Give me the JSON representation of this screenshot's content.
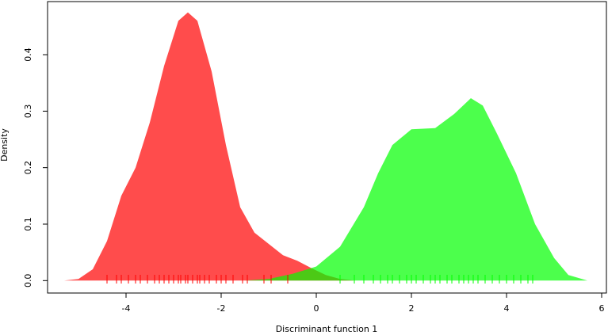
{
  "chart_data": {
    "type": "density",
    "xlabel": "Discriminant function 1",
    "ylabel": "Density",
    "xlim": [
      -5.65,
      6.1
    ],
    "ylim": [
      -0.022,
      0.494
    ],
    "xticks": [
      -4,
      -2,
      0,
      2,
      4,
      6
    ],
    "yticks": [
      {
        "value": 0,
        "label": "0.0"
      },
      0.1,
      0.2,
      0.3,
      0.4
    ],
    "series": [
      {
        "color": "#ff0000",
        "opacity": 0.7,
        "x": [
          -5.3,
          -5.0,
          -4.7,
          -4.4,
          -4.1,
          -3.8,
          -3.5,
          -3.2,
          -2.9,
          -2.7,
          -2.5,
          -2.2,
          -1.9,
          -1.6,
          -1.3,
          -1.0,
          -0.7,
          -0.4,
          -0.1,
          0.2,
          0.5,
          0.8
        ],
        "values": [
          0.0,
          0.003,
          0.02,
          0.07,
          0.15,
          0.2,
          0.28,
          0.38,
          0.46,
          0.475,
          0.46,
          0.37,
          0.24,
          0.13,
          0.085,
          0.065,
          0.045,
          0.035,
          0.022,
          0.01,
          0.003,
          0.0
        ],
        "rug": [
          -4.4,
          -4.2,
          -4.1,
          -3.95,
          -3.8,
          -3.7,
          -3.55,
          -3.4,
          -3.3,
          -3.2,
          -3.1,
          -3.0,
          -2.9,
          -2.85,
          -2.75,
          -2.7,
          -2.6,
          -2.5,
          -2.45,
          -2.35,
          -2.25,
          -2.1,
          -2.0,
          -1.9,
          -1.75,
          -1.55,
          -1.45,
          -1.1,
          -0.95,
          -0.6
        ]
      },
      {
        "color": "#00ff00",
        "opacity": 0.7,
        "x": [
          -1.5,
          -1.0,
          -0.5,
          0.0,
          0.5,
          1.0,
          1.3,
          1.6,
          2.0,
          2.5,
          2.9,
          3.25,
          3.5,
          3.8,
          4.2,
          4.6,
          5.0,
          5.3,
          5.7
        ],
        "values": [
          0.0,
          0.003,
          0.012,
          0.025,
          0.06,
          0.13,
          0.19,
          0.24,
          0.268,
          0.27,
          0.295,
          0.323,
          0.31,
          0.26,
          0.19,
          0.1,
          0.04,
          0.01,
          0.0
        ],
        "rug": [
          0.5,
          0.8,
          1.0,
          1.2,
          1.35,
          1.5,
          1.6,
          1.75,
          1.9,
          2.0,
          2.1,
          2.25,
          2.4,
          2.5,
          2.6,
          2.75,
          2.85,
          3.0,
          3.1,
          3.2,
          3.3,
          3.4,
          3.55,
          3.7,
          3.85,
          4.0,
          4.15,
          4.3,
          4.45,
          4.55
        ]
      }
    ]
  }
}
